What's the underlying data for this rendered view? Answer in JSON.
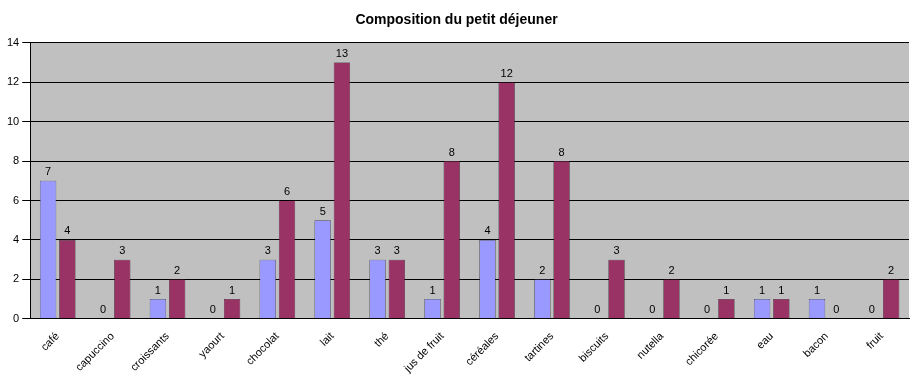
{
  "chart_data": {
    "type": "bar",
    "title": "Composition du petit déjeuner",
    "categories": [
      "café",
      "capuccino",
      "croissants",
      "yaourt",
      "chocolat",
      "lait",
      "thé",
      "jus de fruit",
      "céréales",
      "tartines",
      "biscuits",
      "nutella",
      "chicorée",
      "eau",
      "bacon",
      "fruit"
    ],
    "series": [
      {
        "color": "#9999ff",
        "values": [
          7,
          0,
          1,
          0,
          3,
          5,
          3,
          1,
          4,
          2,
          0,
          0,
          0,
          1,
          1,
          0
        ]
      },
      {
        "color": "#993366",
        "values": [
          4,
          3,
          2,
          1,
          6,
          13,
          3,
          8,
          12,
          8,
          3,
          2,
          1,
          1,
          0,
          2
        ]
      }
    ],
    "ylim": [
      0,
      14
    ],
    "yticks": [
      0,
      2,
      4,
      6,
      8,
      10,
      12,
      14
    ],
    "grid": true,
    "data_labels": true
  }
}
